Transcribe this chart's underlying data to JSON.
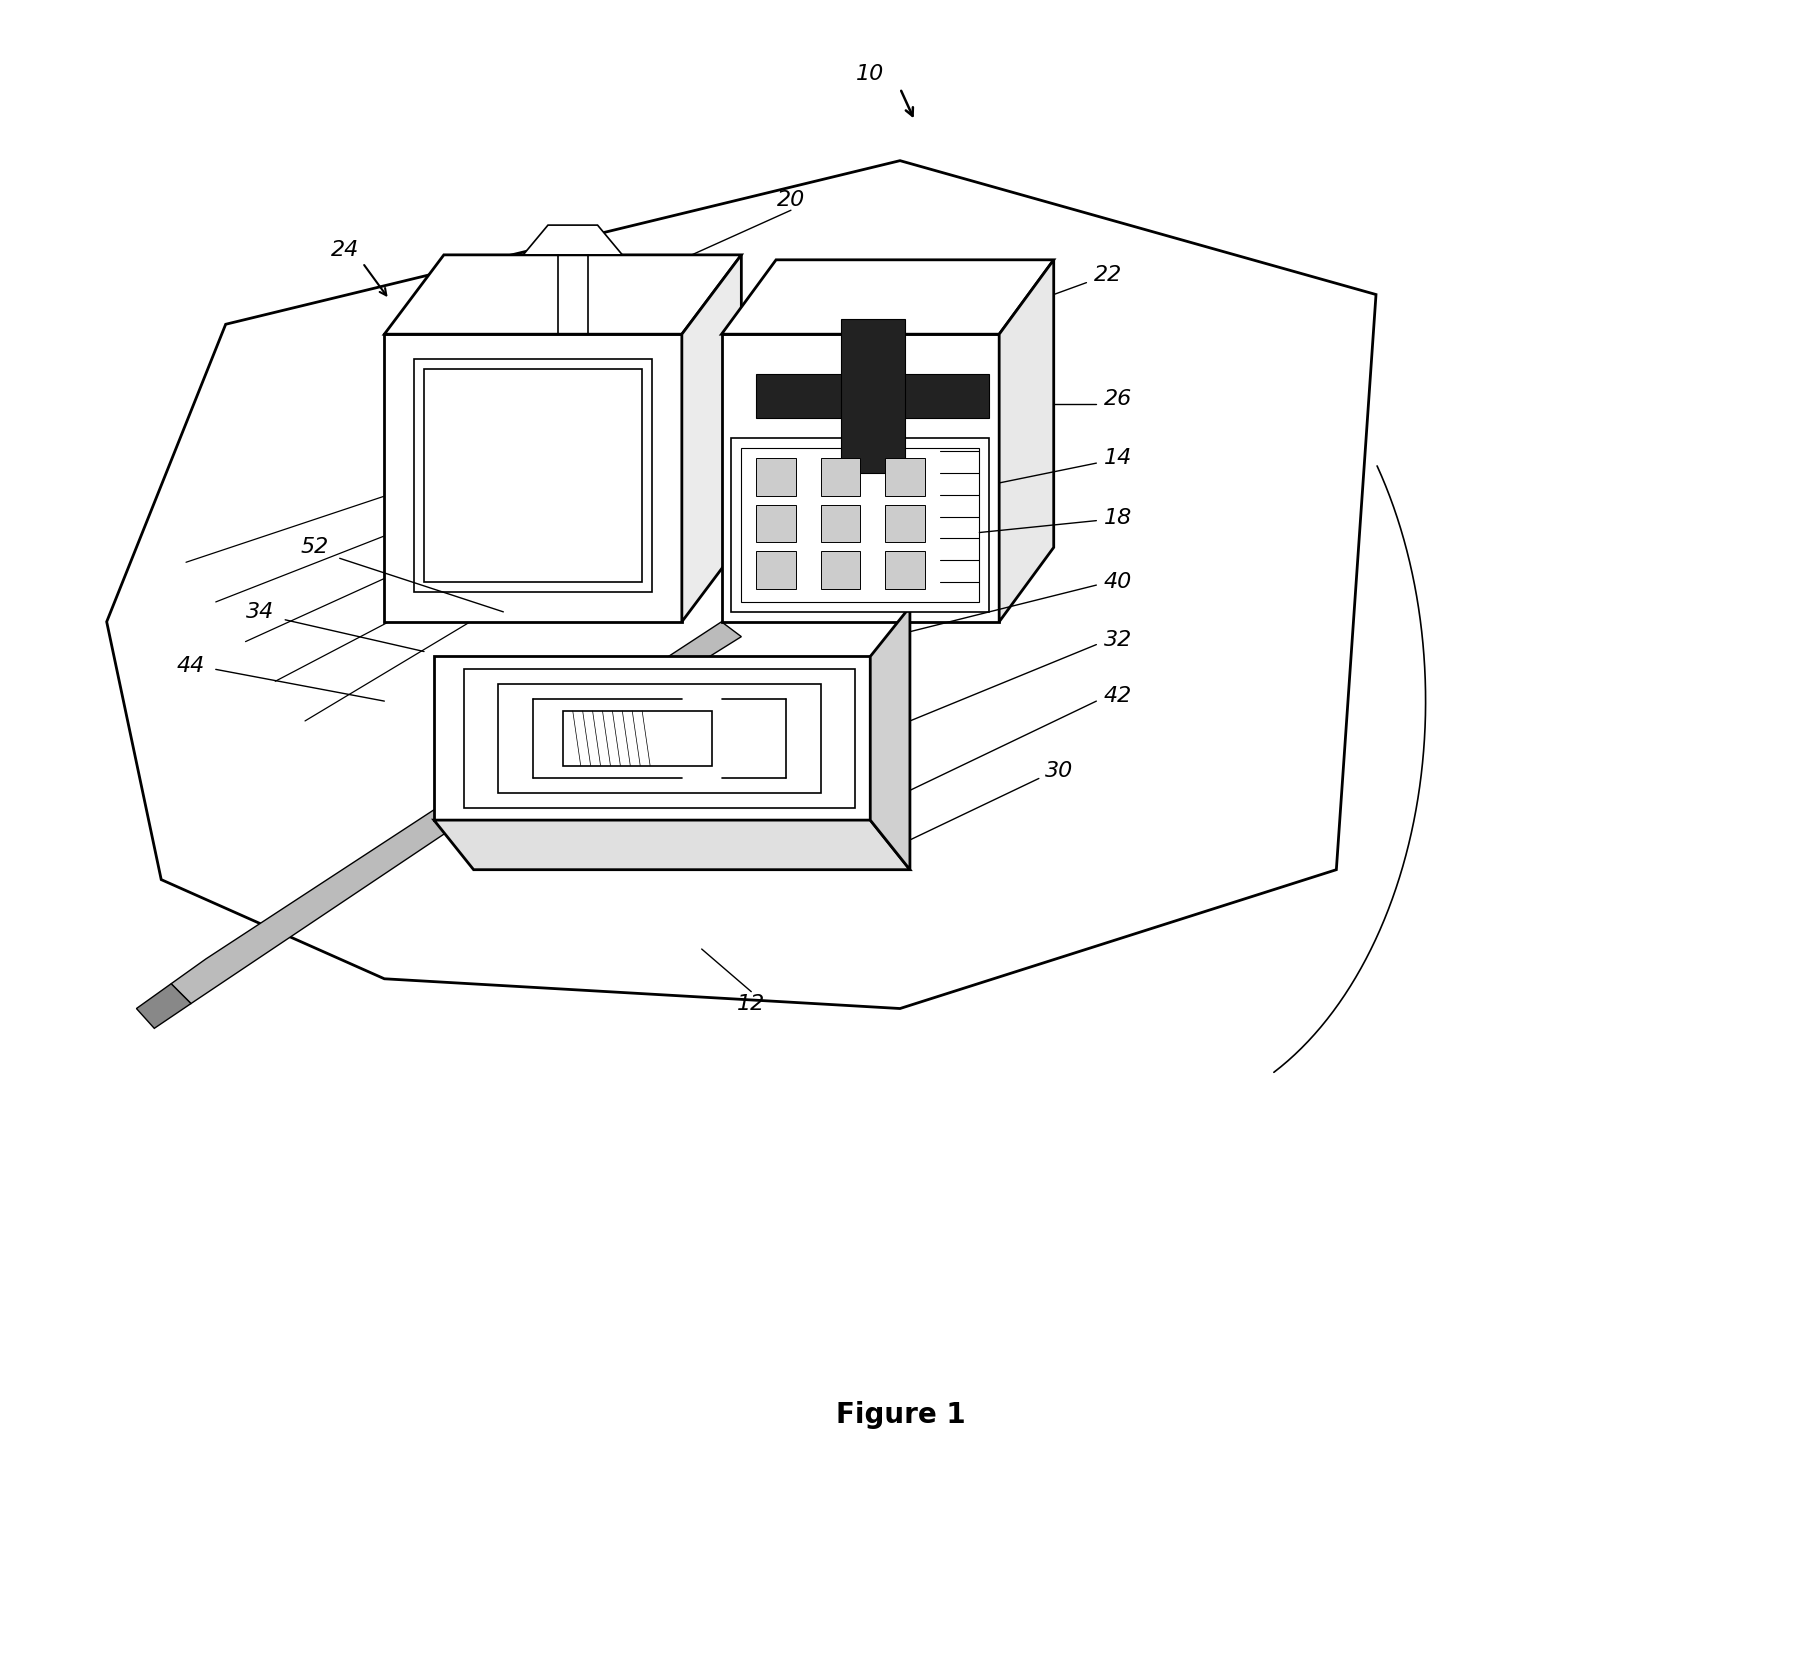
{
  "background_color": "#ffffff",
  "line_color": "#000000",
  "fig_width": 18.03,
  "fig_height": 16.66,
  "caption": "Figure 1",
  "font_size": 16
}
